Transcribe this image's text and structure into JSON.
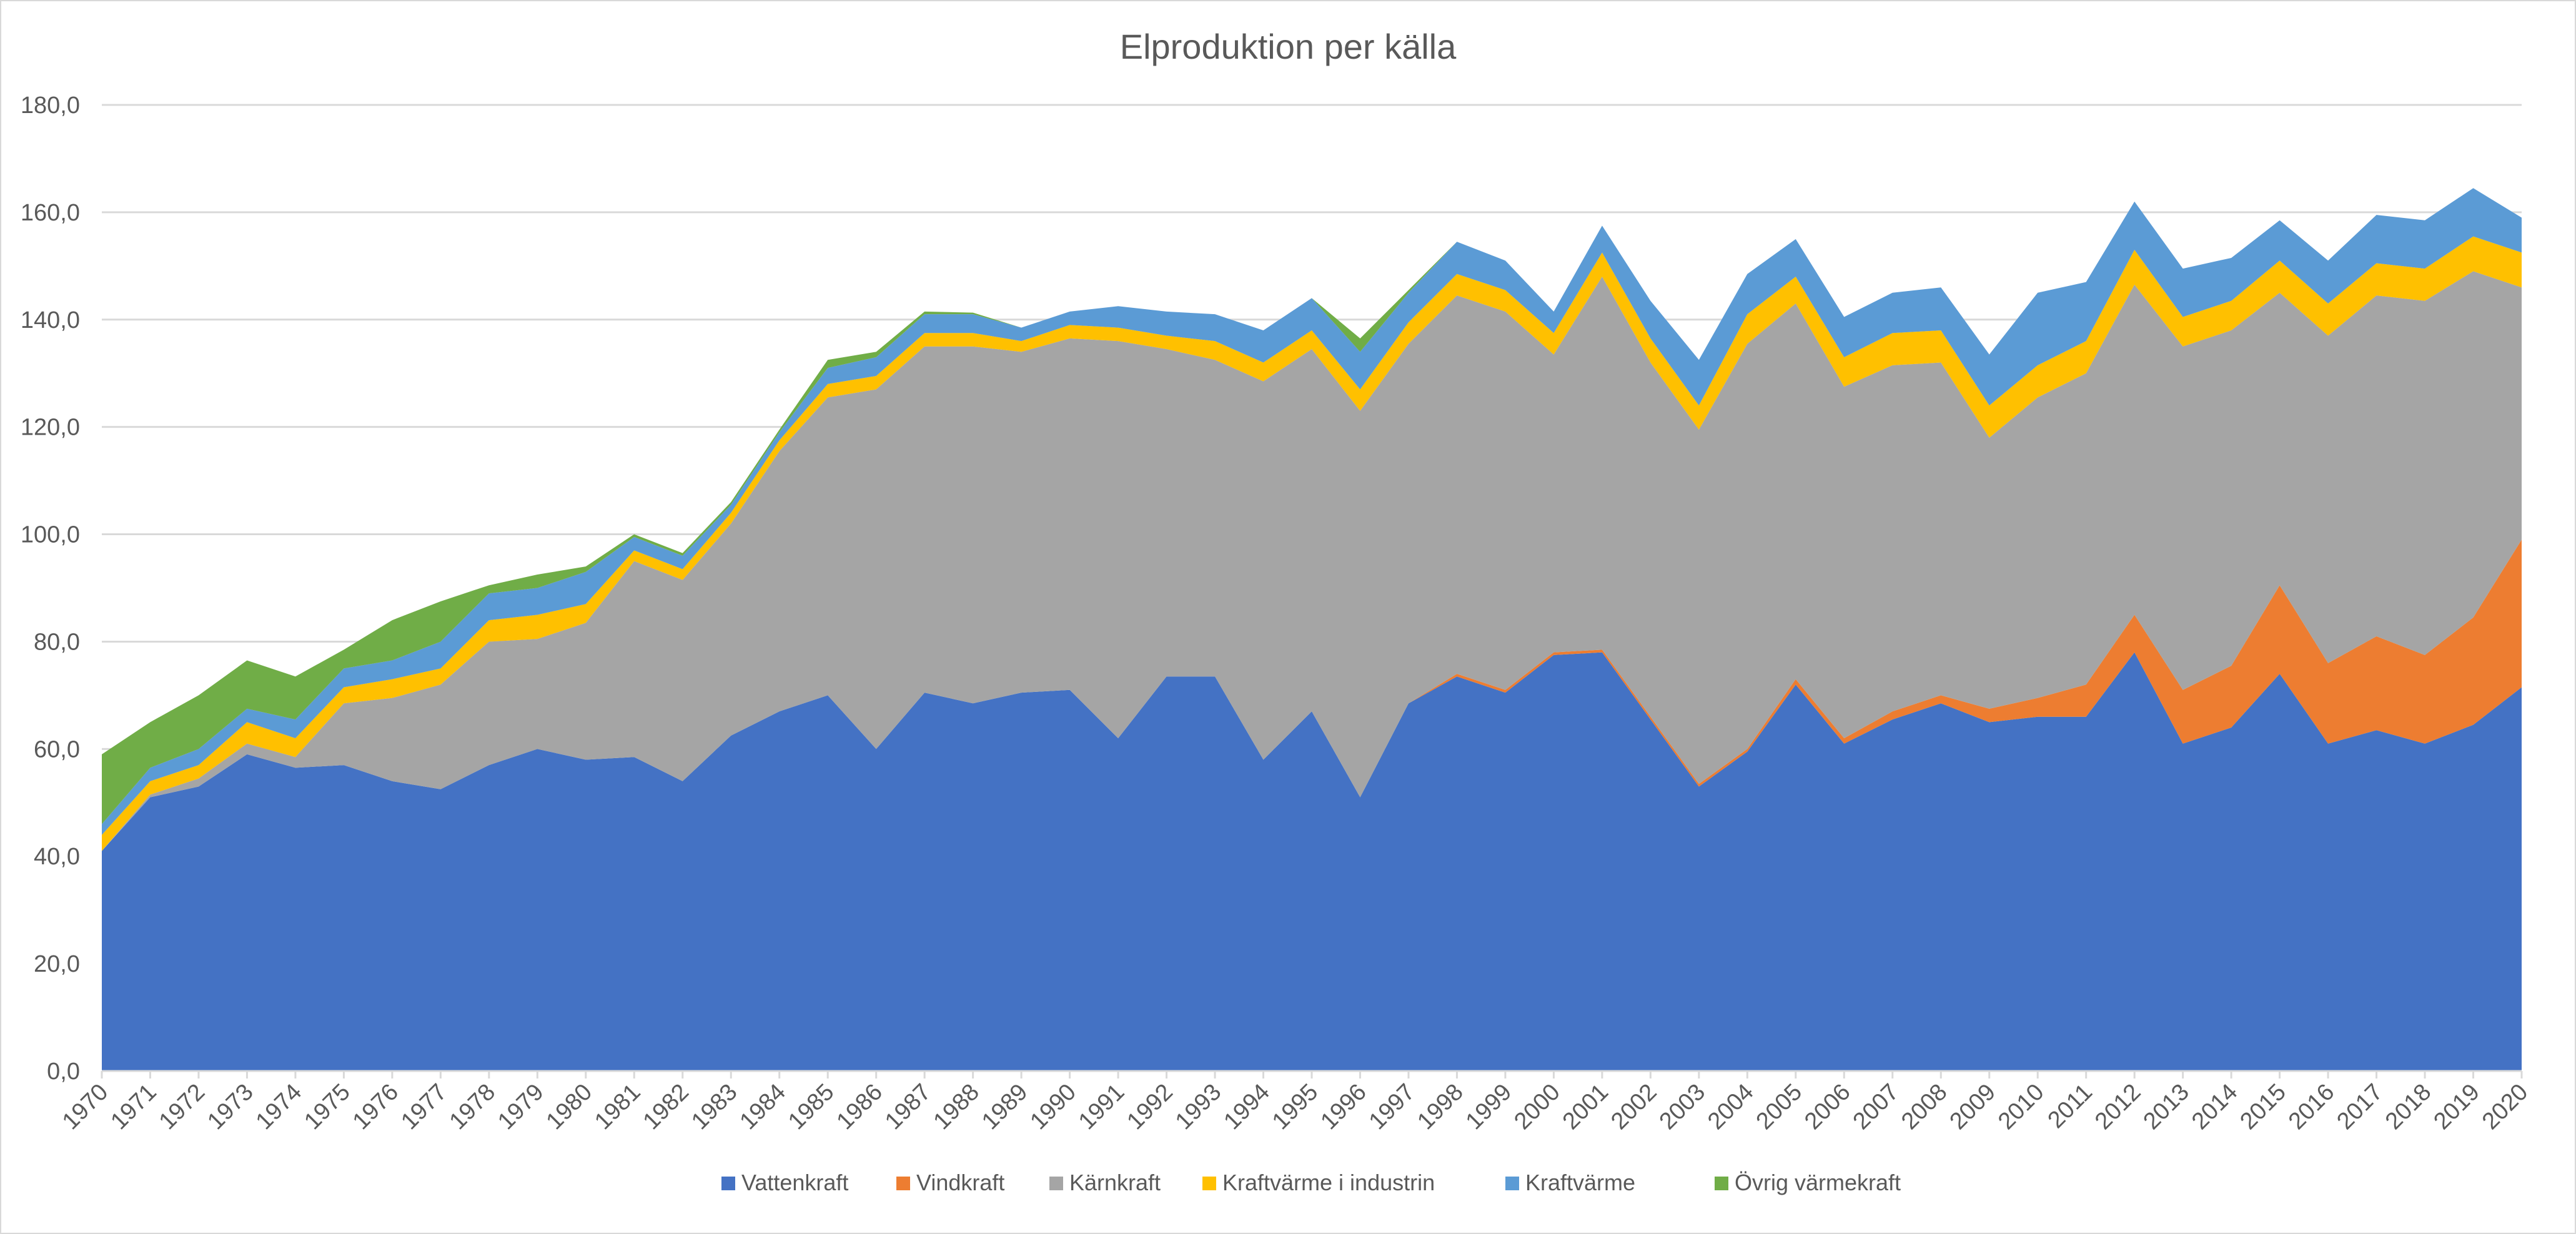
{
  "chart_data": {
    "type": "area",
    "stacked": true,
    "title": "Elproduktion per källa",
    "xlabel": "",
    "ylabel": "",
    "ylim": [
      0,
      180
    ],
    "yticks": [
      "0,0",
      "20,0",
      "40,0",
      "60,0",
      "80,0",
      "100,0",
      "120,0",
      "140,0",
      "160,0",
      "180,0"
    ],
    "grid": true,
    "legend_position": "bottom",
    "x": [
      1970,
      1971,
      1972,
      1973,
      1974,
      1975,
      1976,
      1977,
      1978,
      1979,
      1980,
      1981,
      1982,
      1983,
      1984,
      1985,
      1986,
      1987,
      1988,
      1989,
      1990,
      1991,
      1992,
      1993,
      1994,
      1995,
      1996,
      1997,
      1998,
      1999,
      2000,
      2001,
      2002,
      2003,
      2004,
      2005,
      2006,
      2007,
      2008,
      2009,
      2010,
      2011,
      2012,
      2013,
      2014,
      2015,
      2016,
      2017,
      2018,
      2019,
      2020
    ],
    "series": [
      {
        "name": "Vattenkraft",
        "color": "#4472c4",
        "values": [
          41,
          51,
          53,
          59,
          56.5,
          57,
          54,
          52.5,
          57,
          60,
          58,
          58.5,
          54,
          62.5,
          67,
          70,
          60,
          70.5,
          68.5,
          70.5,
          71,
          62,
          73.5,
          73.5,
          58,
          67,
          51,
          68.5,
          73.5,
          70.5,
          77.5,
          78,
          65.5,
          53,
          59.5,
          72,
          61,
          65.5,
          68.5,
          65,
          66,
          66,
          78,
          61,
          64,
          74,
          61,
          63.5,
          61,
          64.5,
          71.5
        ]
      },
      {
        "name": "Vindkraft",
        "color": "#ed7d31",
        "values": [
          0,
          0,
          0,
          0,
          0,
          0,
          0,
          0,
          0,
          0,
          0,
          0,
          0,
          0,
          0,
          0,
          0,
          0,
          0,
          0,
          0,
          0,
          0,
          0,
          0,
          0,
          0,
          0,
          0.5,
          0.5,
          0.5,
          0.5,
          0.5,
          0.5,
          0.5,
          1,
          1,
          1.5,
          1.5,
          2.5,
          3.5,
          6,
          7,
          10,
          11.5,
          16.5,
          15,
          17.5,
          16.5,
          20,
          27.5
        ]
      },
      {
        "name": "Kärnkraft",
        "color": "#a5a5a5",
        "values": [
          0,
          0.5,
          1.5,
          2,
          2,
          11.5,
          15.5,
          19.5,
          23,
          20.5,
          25.5,
          36.5,
          37.5,
          39.5,
          48.5,
          55.5,
          67,
          64.5,
          66.5,
          63.5,
          65.5,
          74,
          61,
          59,
          70.5,
          67.5,
          72,
          67,
          70.5,
          70.5,
          55.5,
          69.5,
          66,
          66,
          75.5,
          70,
          65.5,
          64.5,
          62,
          50.5,
          56,
          58,
          61.5,
          64,
          62.5,
          54.5,
          61,
          63.5,
          66,
          64.5,
          47
        ]
      },
      {
        "name": "Kraftvärme i industrin",
        "color": "#ffc000",
        "values": [
          3,
          2.5,
          2.5,
          4,
          3.5,
          3,
          3.5,
          3,
          4,
          4.5,
          3.5,
          2,
          2,
          2,
          2,
          2.5,
          2.5,
          2.5,
          2.5,
          2,
          2.5,
          2.5,
          2.5,
          3.5,
          3.5,
          3.5,
          4,
          4,
          4,
          4,
          4,
          4.5,
          4.5,
          4.5,
          5.5,
          5,
          5.5,
          6,
          6,
          6,
          6,
          6,
          6.5,
          5.5,
          5.5,
          6,
          6,
          6,
          6,
          6.5,
          6.5
        ]
      },
      {
        "name": "Kraftvärme",
        "color": "#5b9bd5",
        "values": [
          2,
          2.5,
          3,
          2.5,
          3.5,
          3.5,
          3.5,
          5,
          5,
          5,
          6,
          2.5,
          2.5,
          1.5,
          1.5,
          3,
          3.5,
          3.5,
          3.5,
          2.5,
          2.5,
          4,
          4.5,
          5,
          6,
          6,
          7,
          5.5,
          6,
          5.5,
          4,
          5,
          7,
          8.5,
          7.5,
          7,
          7.5,
          7.5,
          8,
          9.5,
          13.5,
          11,
          9,
          9,
          8,
          7.5,
          8,
          9,
          9,
          9,
          6.5
        ]
      },
      {
        "name": "Övrig värmekraft",
        "color": "#70ad47",
        "values": [
          13,
          8.5,
          10,
          9,
          8,
          3.5,
          7.5,
          7.5,
          1.5,
          2.5,
          1,
          0.5,
          0.5,
          0.5,
          0.5,
          1.5,
          1,
          0.5,
          0.3,
          0,
          0,
          0,
          0,
          0,
          0,
          0,
          2.5,
          0.5,
          0,
          0,
          0,
          0,
          0,
          0,
          0,
          0,
          0,
          0,
          0,
          0,
          0,
          0,
          0,
          0,
          0,
          0,
          0,
          0,
          0,
          0,
          0
        ]
      }
    ]
  }
}
